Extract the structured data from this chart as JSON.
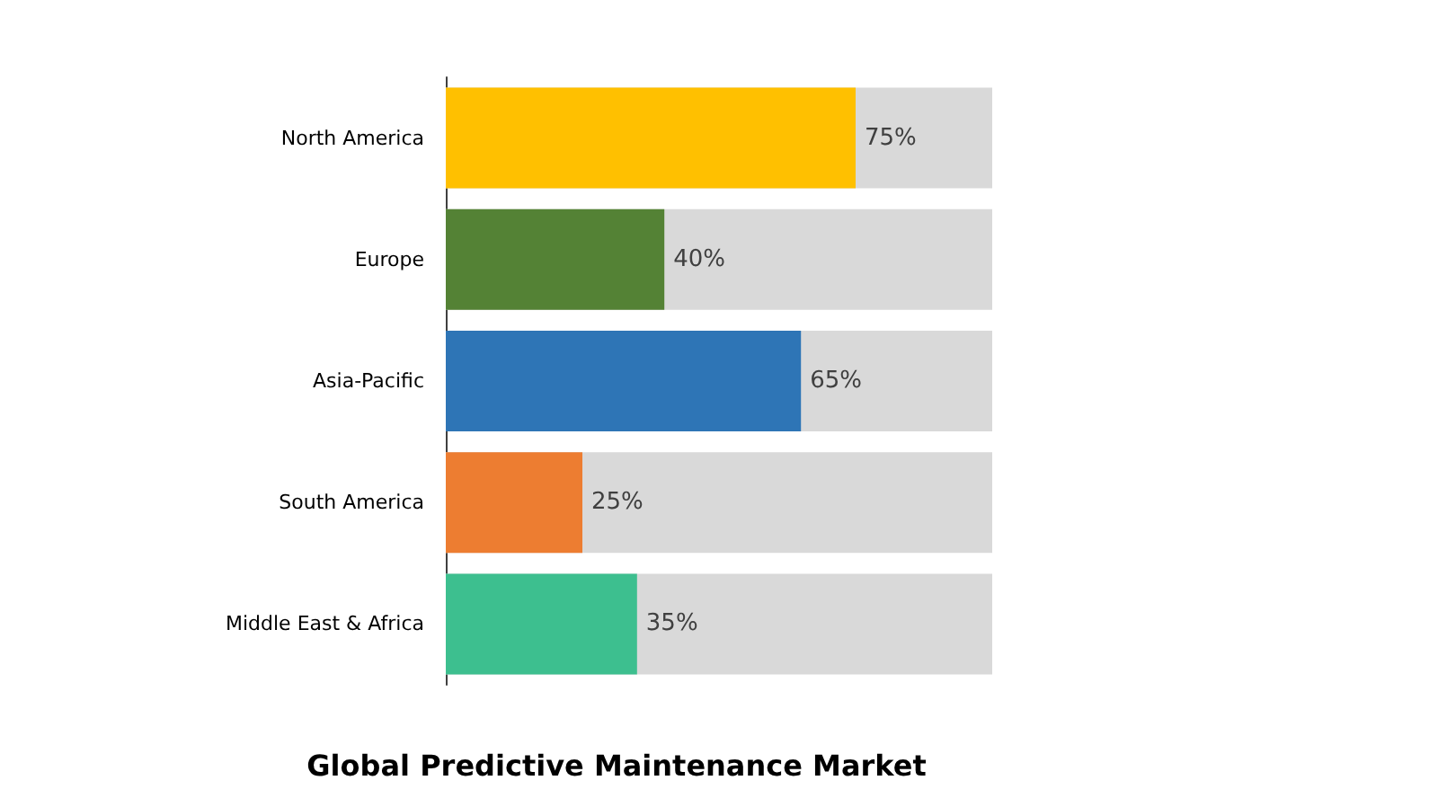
{
  "chart_data": {
    "type": "bar",
    "orientation": "horizontal",
    "title": "Global Predictive Maintenance Market",
    "categories": [
      "North America",
      "Europe",
      "Asia-Pacific",
      "South America",
      "Middle East & Africa"
    ],
    "values": [
      75,
      40,
      65,
      25,
      35
    ],
    "colors": [
      "#ffc000",
      "#548235",
      "#2e75b6",
      "#ed7d31",
      "#3dbf8f"
    ],
    "value_labels": [
      "75%",
      "40%",
      "65%",
      "25%",
      "35%"
    ],
    "xlim": [
      0,
      100
    ],
    "tick_labels": "y",
    "grid": false
  }
}
